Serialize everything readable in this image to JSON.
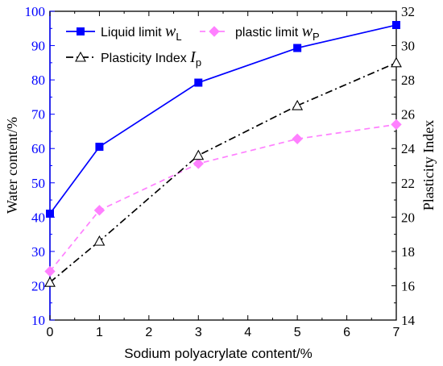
{
  "chart_data": {
    "type": "line",
    "xlabel": "Sodium polyacrylate content/%",
    "ylabel_left": "Water content/%",
    "ylabel_right": "Plasticity Index",
    "x_ticks": [
      "0",
      "1",
      "2",
      "3",
      "4",
      "5",
      "6",
      "7"
    ],
    "y_left_ticks": [
      "10",
      "20",
      "30",
      "40",
      "50",
      "60",
      "70",
      "80",
      "90",
      "100"
    ],
    "y_right_ticks": [
      "14",
      "16",
      "18",
      "20",
      "22",
      "24",
      "26",
      "28",
      "30",
      "32"
    ],
    "xlim": [
      0,
      7
    ],
    "ylim_left": [
      10,
      100
    ],
    "ylim_right": [
      14,
      32
    ],
    "grid": false,
    "legend_placement": "top-left",
    "series": [
      {
        "legend_text": "Liquid limit ",
        "symbol": "w",
        "subscript": "L",
        "axis": "left",
        "color": "#0000ff",
        "line_style": "solid",
        "marker": "square",
        "x": [
          0,
          1,
          3,
          5,
          7
        ],
        "y": [
          41,
          60.5,
          79.2,
          89.3,
          96
        ]
      },
      {
        "legend_text": "plastic limit ",
        "symbol": "w",
        "subscript": "P",
        "axis": "left",
        "color": "#ff80ff",
        "line_style": "dashed",
        "marker": "diamond",
        "x": [
          0,
          1,
          3,
          5,
          7
        ],
        "y": [
          24.2,
          42,
          55.6,
          62.8,
          67
        ]
      },
      {
        "legend_text": "Plasticity Index ",
        "symbol": "I",
        "subscript": "p",
        "axis": "right",
        "color": "#000000",
        "line_style": "dashdot",
        "marker": "triangle",
        "x": [
          0,
          1,
          3,
          5,
          7
        ],
        "y": [
          16.2,
          18.6,
          23.6,
          26.5,
          29
        ]
      }
    ]
  }
}
